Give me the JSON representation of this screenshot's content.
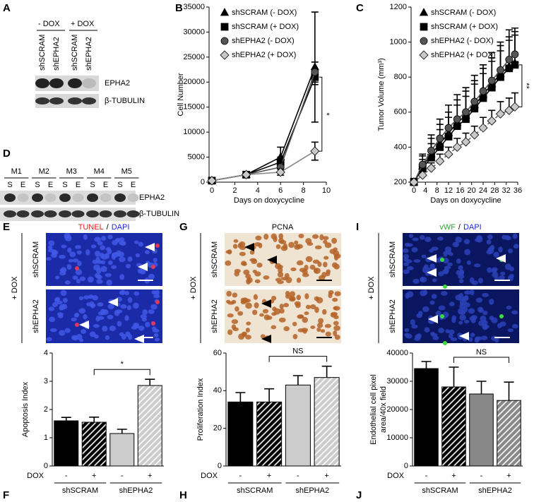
{
  "panels": {
    "A": {
      "letter": "A",
      "conditions": [
        "- DOX",
        "+ DOX"
      ],
      "lanes": [
        "shSCRAM",
        "shEPHA2",
        "shSCRAM",
        "shEPHA2"
      ],
      "bands": [
        "EPHA2",
        "β-TUBULIN"
      ]
    },
    "D": {
      "letter": "D",
      "mice": [
        "M1",
        "M2",
        "M3",
        "M4",
        "M5"
      ],
      "lanes": [
        "S",
        "E",
        "S",
        "E",
        "S",
        "E",
        "S",
        "E",
        "S",
        "E"
      ],
      "bands": [
        "EPHA2",
        "β-TUBULIN"
      ]
    },
    "E": {
      "letter": "E",
      "stain": [
        "TUNEL",
        "/",
        "DAPI"
      ],
      "stain_colors": [
        "#e0201c",
        "#000000",
        "#1a2ad0"
      ],
      "condition": "+ DOX",
      "rows": [
        "shSCRAM",
        "shEPHA2"
      ]
    },
    "G": {
      "letter": "G",
      "stain": [
        "PCNA"
      ],
      "stain_colors": [
        "#000000"
      ],
      "condition": "+ DOX",
      "rows": [
        "shSCRAM",
        "shEPHA2"
      ]
    },
    "I": {
      "letter": "I",
      "stain": [
        "vWF",
        "/",
        "DAPI"
      ],
      "stain_colors": [
        "#2aa82a",
        "#000000",
        "#1a2ad0"
      ],
      "condition": "+ DOX",
      "rows": [
        "shSCRAM",
        "shEPHA2"
      ]
    }
  },
  "chart_data": [
    {
      "type": "line",
      "letter": "B",
      "xlabel": "Days on doxycycline",
      "ylabel": "Cell Number",
      "x": [
        0,
        3,
        6,
        9
      ],
      "xlim": [
        0,
        10
      ],
      "xticks": [
        0,
        2,
        4,
        6,
        8,
        10
      ],
      "ylim": [
        0,
        35000
      ],
      "yticks": [
        0,
        5000,
        10000,
        15000,
        20000,
        25000,
        30000,
        35000
      ],
      "error_bars": "both",
      "annotation": "*",
      "series": [
        {
          "name": "shSCRAM (- DOX)",
          "color": "#000000",
          "marker": "triangle",
          "values": [
            300,
            1500,
            5000,
            23000
          ],
          "errors": [
            100,
            300,
            2000,
            11000
          ]
        },
        {
          "name": "shSCRAM (+ DOX)",
          "color": "#000000",
          "marker": "square",
          "values": [
            300,
            1500,
            4000,
            21000
          ],
          "errors": [
            100,
            300,
            1000,
            1500
          ]
        },
        {
          "name": "shEPHA2 (- DOX)",
          "color": "#555555",
          "marker": "circle",
          "values": [
            300,
            1500,
            3000,
            22000
          ],
          "errors": [
            100,
            300,
            1000,
            2000
          ]
        },
        {
          "name": "shEPHA2 (+ DOX)",
          "color": "#c8c8c8",
          "marker": "diamond",
          "values": [
            300,
            1500,
            2000,
            6200
          ],
          "errors": [
            100,
            200,
            600,
            1800
          ]
        }
      ]
    },
    {
      "type": "line",
      "letter": "C",
      "xlabel": "Days on doxycycline",
      "ylabel": "Tumor Volume (mm³)",
      "x": [
        0,
        3,
        6,
        9,
        12,
        15,
        18,
        21,
        24,
        27,
        30,
        33,
        35
      ],
      "xlim": [
        0,
        36
      ],
      "xticks": [
        0,
        4,
        8,
        12,
        16,
        20,
        24,
        28,
        32,
        36
      ],
      "ylim": [
        200,
        1200
      ],
      "yticks": [
        200,
        400,
        600,
        800,
        1000,
        1200
      ],
      "error_bars": "upper",
      "annotation": "**",
      "series": [
        {
          "name": "shSCRAM (- DOX)",
          "color": "#000000",
          "marker": "triangle",
          "values": [
            200,
            290,
            360,
            420,
            480,
            540,
            580,
            640,
            700,
            760,
            820,
            860,
            880
          ],
          "errors": [
            20,
            60,
            90,
            110,
            120,
            130,
            140,
            140,
            150,
            150,
            160,
            170,
            180
          ]
        },
        {
          "name": "shSCRAM (+ DOX)",
          "color": "#000000",
          "marker": "square",
          "values": [
            200,
            280,
            340,
            400,
            460,
            520,
            560,
            620,
            680,
            740,
            800,
            850,
            870
          ],
          "errors": [
            20,
            50,
            80,
            100,
            110,
            120,
            130,
            140,
            140,
            150,
            150,
            160,
            170
          ]
        },
        {
          "name": "shEPHA2 (- DOX)",
          "color": "#555555",
          "marker": "circle",
          "values": [
            200,
            300,
            380,
            450,
            510,
            560,
            600,
            660,
            720,
            780,
            840,
            900,
            930
          ],
          "errors": [
            20,
            60,
            90,
            110,
            130,
            140,
            140,
            150,
            150,
            160,
            160,
            170,
            150
          ]
        },
        {
          "name": "shEPHA2 (+ DOX)",
          "color": "#c8c8c8",
          "marker": "diamond",
          "line_style": "dashed",
          "values": [
            200,
            240,
            280,
            320,
            360,
            400,
            430,
            470,
            510,
            550,
            590,
            610,
            630
          ],
          "errors": [
            10,
            20,
            30,
            40,
            40,
            50,
            50,
            50,
            60,
            60,
            70,
            70,
            80
          ]
        }
      ]
    },
    {
      "type": "bar",
      "letter": "F",
      "ylabel": "Apoptosis Index",
      "axis_title": "DOX",
      "categories": [
        "-",
        "+",
        "-",
        "+"
      ],
      "groups": [
        "shSCRAM",
        "shEPHA2"
      ],
      "values": [
        1.6,
        1.55,
        1.15,
        2.85
      ],
      "errors": [
        0.12,
        0.18,
        0.15,
        0.22
      ],
      "colors": [
        "#000000",
        "#000000",
        "#cccccc",
        "#cccccc"
      ],
      "hatched": [
        false,
        true,
        false,
        true
      ],
      "ylim": [
        0,
        4
      ],
      "yticks": [
        0,
        1,
        2,
        3,
        4
      ],
      "annotation": "*"
    },
    {
      "type": "bar",
      "letter": "H",
      "ylabel": "Proliferation Index",
      "axis_title": "DOX",
      "categories": [
        "-",
        "+",
        "-",
        "+"
      ],
      "groups": [
        "shSCRAM",
        "shEPHA2"
      ],
      "values": [
        34,
        34,
        43,
        47
      ],
      "errors": [
        5,
        7,
        5,
        6
      ],
      "colors": [
        "#000000",
        "#000000",
        "#cccccc",
        "#cccccc"
      ],
      "hatched": [
        false,
        true,
        false,
        true
      ],
      "ylim": [
        0,
        60
      ],
      "yticks": [
        0,
        20,
        40,
        60
      ],
      "annotation": "NS"
    },
    {
      "type": "bar",
      "letter": "J",
      "ylabel": [
        "Endothelial cell pixel",
        "area/40x field"
      ],
      "axis_title": "DOX",
      "categories": [
        "-",
        "+",
        "-",
        "+"
      ],
      "groups": [
        "shSCRAM",
        "shEPHA2"
      ],
      "values": [
        34500,
        28000,
        25500,
        23200
      ],
      "errors": [
        2500,
        7000,
        4500,
        6500
      ],
      "colors": [
        "#000000",
        "#000000",
        "#888888",
        "#888888"
      ],
      "hatched": [
        false,
        true,
        false,
        true
      ],
      "ylim": [
        0,
        40000
      ],
      "yticks": [
        0,
        10000,
        20000,
        30000,
        40000
      ],
      "annotation": "NS"
    }
  ]
}
